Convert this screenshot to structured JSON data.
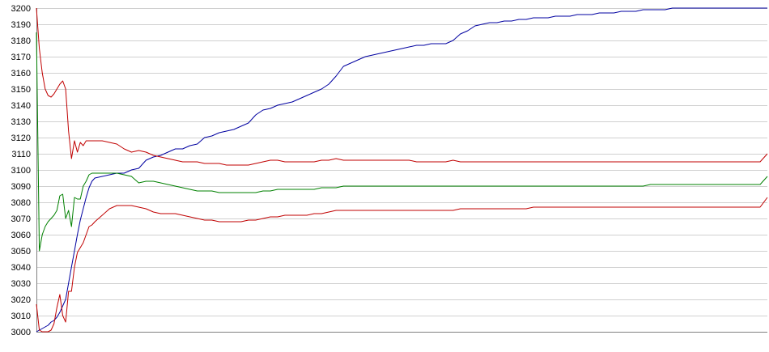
{
  "chart_data": {
    "type": "line",
    "title": "",
    "xlabel": "",
    "ylabel": "",
    "ylim": [
      3000,
      3200
    ],
    "yticks": [
      3200,
      3190,
      3180,
      3170,
      3160,
      3150,
      3140,
      3130,
      3120,
      3110,
      3100,
      3090,
      3080,
      3070,
      3060,
      3050,
      3040,
      3030,
      3020,
      3010,
      3000
    ],
    "grid": true,
    "legend": "none",
    "x": [
      0,
      2,
      4,
      6,
      8,
      10,
      12,
      14,
      16,
      18,
      20,
      22,
      24,
      26,
      28,
      30,
      32,
      34,
      36,
      38,
      40,
      45,
      50,
      55,
      60,
      65,
      70,
      75,
      80,
      85,
      90,
      95,
      100,
      105,
      110,
      115,
      120,
      125,
      130,
      135,
      140,
      145,
      150,
      155,
      160,
      165,
      170,
      175,
      180,
      185,
      190,
      195,
      200,
      205,
      210,
      215,
      220,
      225,
      230,
      235,
      240,
      245,
      250,
      255,
      260,
      265,
      270,
      275,
      280,
      285,
      290,
      295,
      300,
      305,
      310,
      315,
      320,
      325,
      330,
      335,
      340,
      345,
      350,
      355,
      360,
      365,
      370,
      375,
      380,
      385,
      390,
      395,
      400,
      405,
      410,
      415,
      420,
      425,
      430,
      435,
      440,
      445,
      450,
      455,
      460,
      465,
      470,
      475,
      480,
      485,
      490,
      495,
      500
    ],
    "series": [
      {
        "color": "#0000a0",
        "values": [
          3000,
          3001,
          3002,
          3003,
          3004,
          3006,
          3007,
          3009,
          3012,
          3016,
          3020,
          3030,
          3040,
          3050,
          3060,
          3069,
          3076,
          3083,
          3089,
          3093,
          3095,
          3096,
          3097,
          3098,
          3098,
          3100,
          3101,
          3106,
          3108,
          3109,
          3111,
          3113,
          3113,
          3115,
          3116,
          3120,
          3121,
          3123,
          3124,
          3125,
          3127,
          3129,
          3134,
          3137,
          3138,
          3140,
          3141,
          3142,
          3144,
          3146,
          3148,
          3150,
          3153,
          3158,
          3164,
          3166,
          3168,
          3170,
          3171,
          3172,
          3173,
          3174,
          3175,
          3176,
          3177,
          3177,
          3178,
          3178,
          3178,
          3180,
          3184,
          3186,
          3189,
          3190,
          3191,
          3191,
          3192,
          3192,
          3193,
          3193,
          3194,
          3194,
          3194,
          3195,
          3195,
          3195,
          3196,
          3196,
          3196,
          3197,
          3197,
          3197,
          3198,
          3198,
          3198,
          3199,
          3199,
          3199,
          3199,
          3200,
          3200,
          3200,
          3200,
          3200,
          3200,
          3200,
          3200,
          3200,
          3200,
          3200,
          3200,
          3200,
          3200
        ]
      },
      {
        "color": "#c00000",
        "values": [
          3200,
          3175,
          3160,
          3150,
          3146,
          3145,
          3147,
          3150,
          3153,
          3155,
          3150,
          3124,
          3107,
          3118,
          3111,
          3117,
          3115,
          3118,
          3118,
          3118,
          3118,
          3118,
          3117,
          3116,
          3113,
          3111,
          3112,
          3111,
          3109,
          3108,
          3107,
          3106,
          3105,
          3105,
          3105,
          3104,
          3104,
          3104,
          3103,
          3103,
          3103,
          3103,
          3104,
          3105,
          3106,
          3106,
          3105,
          3105,
          3105,
          3105,
          3105,
          3106,
          3106,
          3107,
          3106,
          3106,
          3106,
          3106,
          3106,
          3106,
          3106,
          3106,
          3106,
          3106,
          3105,
          3105,
          3105,
          3105,
          3105,
          3106,
          3105,
          3105,
          3105,
          3105,
          3105,
          3105,
          3105,
          3105,
          3105,
          3105,
          3105,
          3105,
          3105,
          3105,
          3105,
          3105,
          3105,
          3105,
          3105,
          3105,
          3105,
          3105,
          3105,
          3105,
          3105,
          3105,
          3105,
          3105,
          3105,
          3105,
          3105,
          3105,
          3105,
          3105,
          3105,
          3105,
          3105,
          3105,
          3105,
          3105,
          3105,
          3105,
          3110
        ]
      },
      {
        "color": "#008000",
        "values": [
          3185,
          3050,
          3060,
          3065,
          3068,
          3070,
          3072,
          3075,
          3084,
          3085,
          3070,
          3075,
          3065,
          3083,
          3082,
          3082,
          3090,
          3093,
          3097,
          3098,
          3098,
          3098,
          3098,
          3098,
          3097,
          3096,
          3092,
          3093,
          3093,
          3092,
          3091,
          3090,
          3089,
          3088,
          3087,
          3087,
          3087,
          3086,
          3086,
          3086,
          3086,
          3086,
          3086,
          3087,
          3087,
          3088,
          3088,
          3088,
          3088,
          3088,
          3088,
          3089,
          3089,
          3089,
          3090,
          3090,
          3090,
          3090,
          3090,
          3090,
          3090,
          3090,
          3090,
          3090,
          3090,
          3090,
          3090,
          3090,
          3090,
          3090,
          3090,
          3090,
          3090,
          3090,
          3090,
          3090,
          3090,
          3090,
          3090,
          3090,
          3090,
          3090,
          3090,
          3090,
          3090,
          3090,
          3090,
          3090,
          3090,
          3090,
          3090,
          3090,
          3090,
          3090,
          3090,
          3090,
          3091,
          3091,
          3091,
          3091,
          3091,
          3091,
          3091,
          3091,
          3091,
          3091,
          3091,
          3091,
          3091,
          3091,
          3091,
          3091,
          3096
        ]
      },
      {
        "color": "#c00000",
        "values": [
          3017,
          3001,
          3000,
          3000,
          3000,
          3001,
          3005,
          3015,
          3023,
          3010,
          3006,
          3025,
          3025,
          3040,
          3049,
          3052,
          3055,
          3060,
          3065,
          3066,
          3068,
          3072,
          3076,
          3078,
          3078,
          3078,
          3077,
          3076,
          3074,
          3073,
          3073,
          3073,
          3072,
          3071,
          3070,
          3069,
          3069,
          3068,
          3068,
          3068,
          3068,
          3069,
          3069,
          3070,
          3071,
          3071,
          3072,
          3072,
          3072,
          3072,
          3073,
          3073,
          3074,
          3075,
          3075,
          3075,
          3075,
          3075,
          3075,
          3075,
          3075,
          3075,
          3075,
          3075,
          3075,
          3075,
          3075,
          3075,
          3075,
          3075,
          3076,
          3076,
          3076,
          3076,
          3076,
          3076,
          3076,
          3076,
          3076,
          3076,
          3077,
          3077,
          3077,
          3077,
          3077,
          3077,
          3077,
          3077,
          3077,
          3077,
          3077,
          3077,
          3077,
          3077,
          3077,
          3077,
          3077,
          3077,
          3077,
          3077,
          3077,
          3077,
          3077,
          3077,
          3077,
          3077,
          3077,
          3077,
          3077,
          3077,
          3077,
          3077,
          3083
        ]
      }
    ]
  }
}
